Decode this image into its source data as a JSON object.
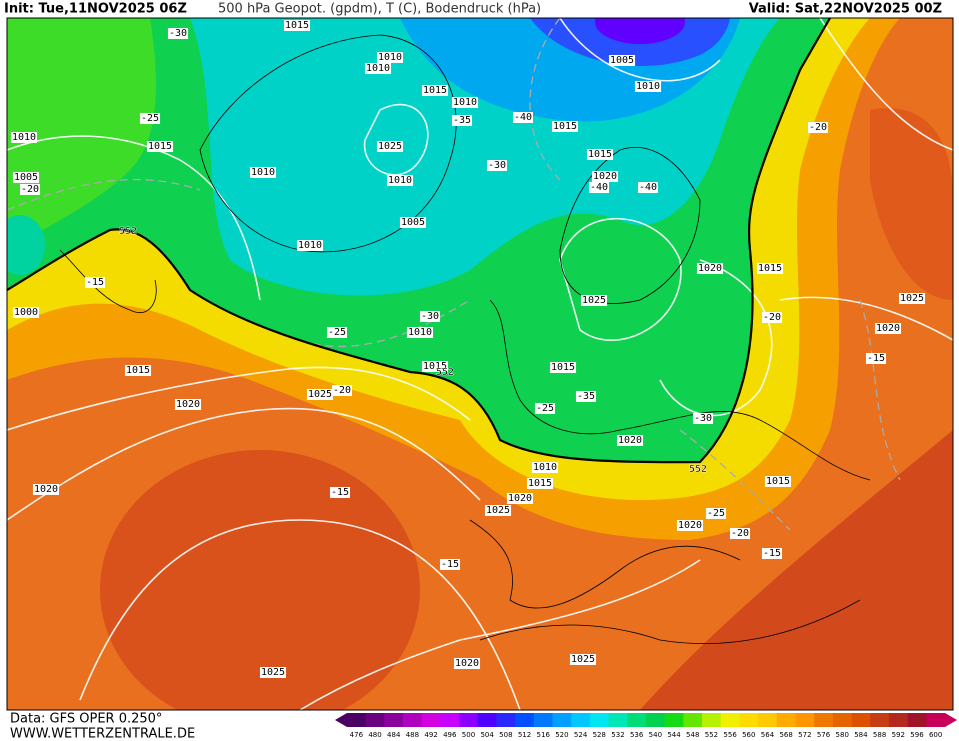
{
  "header": {
    "init": "Init: Tue,11NOV2025 06Z",
    "title": "500 hPa Geopot. (gpdm), T (C), Bodendruck (hPa)",
    "valid": "Valid: Sat,22NOV2025 00Z"
  },
  "footer": {
    "source": "Data: GFS OPER 0.250°",
    "site": "WWW.WETTERZENTRALE.DE"
  },
  "legend": {
    "values": [
      476,
      480,
      484,
      488,
      492,
      496,
      500,
      504,
      508,
      512,
      516,
      520,
      524,
      528,
      532,
      536,
      540,
      544,
      548,
      552,
      556,
      560,
      564,
      568,
      572,
      576,
      580,
      584,
      588,
      592,
      596,
      600
    ],
    "colors": [
      "#4b0064",
      "#6a0080",
      "#8c00a0",
      "#b000c0",
      "#d200e0",
      "#c800ff",
      "#8c00ff",
      "#5000ff",
      "#2828ff",
      "#0050ff",
      "#0078ff",
      "#00a0ff",
      "#00c8ff",
      "#00e6f0",
      "#00e6b4",
      "#00dc78",
      "#00d250",
      "#14dc14",
      "#64e600",
      "#b4f000",
      "#f0f000",
      "#ffdc00",
      "#ffc800",
      "#ffaa00",
      "#ff9600",
      "#f07800",
      "#e66400",
      "#dc5000",
      "#c83c14",
      "#b4281e",
      "#a01428",
      "#c8005a"
    ]
  },
  "map": {
    "pressure_labels": [
      1015,
      1010,
      1010,
      1005,
      1010,
      1015,
      1010,
      1015,
      1010,
      1015,
      1025,
      1015,
      1020,
      1010,
      1010,
      1005,
      1005,
      1010,
      1020,
      1015,
      1025,
      1025,
      1000,
      1020,
      1010,
      1015,
      1015,
      1015,
      1025,
      1020,
      1020,
      1010,
      1015,
      1020,
      1025,
      1015,
      1020,
      1020,
      1020,
      1025,
      1025
    ],
    "temperature_labels": [
      -30,
      -25,
      -20,
      -15,
      -30,
      -25,
      -35,
      -40,
      -30,
      -40,
      -40,
      -20,
      -20,
      -15,
      -20,
      -25,
      -35,
      -30,
      -15,
      -25,
      -20,
      -15,
      -15
    ],
    "contour_552_labels": [
      552,
      552,
      552
    ]
  }
}
